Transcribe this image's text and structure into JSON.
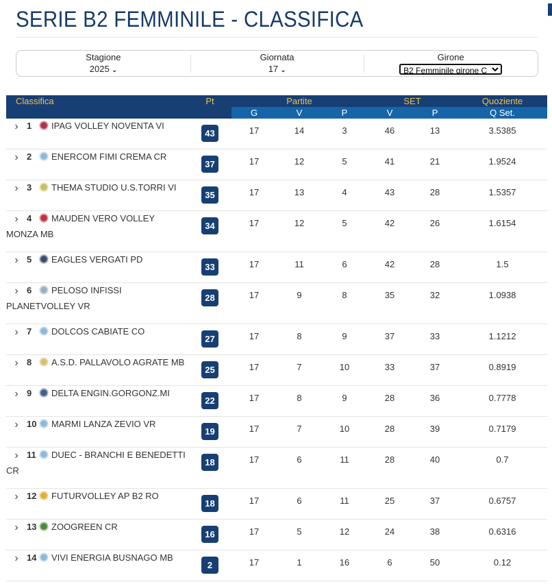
{
  "title": "SERIE B2 FEMMINILE - CLASSIFICA",
  "filters": {
    "stagione": {
      "label": "Stagione",
      "value": "2025"
    },
    "giornata": {
      "label": "Giornata",
      "value": "17"
    },
    "girone": {
      "label": "Girone",
      "value": "B2 Femminile girone C"
    }
  },
  "table": {
    "headers": {
      "classifica": "Classifica",
      "pt": "Pt",
      "partite": "Partite",
      "set": "SET",
      "quoziente": "Quoziente"
    },
    "subheaders": {
      "g": "G",
      "v": "V",
      "p": "P",
      "sv": "V",
      "sp": "P",
      "q": "Q Set."
    },
    "rows": [
      {
        "pos": "1",
        "team": "IPAG VOLLEY NOVENTA VI",
        "pt": "43",
        "g": "17",
        "v": "14",
        "p": "3",
        "sv": "46",
        "sp": "13",
        "q": "3.5385"
      },
      {
        "pos": "2",
        "team": "ENERCOM FIMI CREMA CR",
        "pt": "37",
        "g": "17",
        "v": "12",
        "p": "5",
        "sv": "41",
        "sp": "21",
        "q": "1.9524"
      },
      {
        "pos": "3",
        "team": "THEMA STUDIO U.S.TORRI VI",
        "pt": "35",
        "g": "17",
        "v": "13",
        "p": "4",
        "sv": "43",
        "sp": "28",
        "q": "1.5357"
      },
      {
        "pos": "4",
        "team": "MAUDEN VERO VOLLEY MONZA MB",
        "pt": "34",
        "g": "17",
        "v": "12",
        "p": "5",
        "sv": "42",
        "sp": "26",
        "q": "1.6154"
      },
      {
        "pos": "5",
        "team": "EAGLES VERGATI PD",
        "pt": "33",
        "g": "17",
        "v": "11",
        "p": "6",
        "sv": "42",
        "sp": "28",
        "q": "1.5"
      },
      {
        "pos": "6",
        "team": "PELOSO INFISSI PLANETVOLLEY VR",
        "pt": "28",
        "g": "17",
        "v": "9",
        "p": "8",
        "sv": "35",
        "sp": "32",
        "q": "1.0938"
      },
      {
        "pos": "7",
        "team": "DOLCOS CABIATE CO",
        "pt": "27",
        "g": "17",
        "v": "8",
        "p": "9",
        "sv": "37",
        "sp": "33",
        "q": "1.1212"
      },
      {
        "pos": "8",
        "team": "A.S.D. PALLAVOLO AGRATE MB",
        "pt": "25",
        "g": "17",
        "v": "7",
        "p": "10",
        "sv": "33",
        "sp": "37",
        "q": "0.8919"
      },
      {
        "pos": "9",
        "team": "DELTA ENGIN.GORGONZ.MI",
        "pt": "22",
        "g": "17",
        "v": "8",
        "p": "9",
        "sv": "28",
        "sp": "36",
        "q": "0.7778"
      },
      {
        "pos": "10",
        "team": "MARMI LANZA ZEVIO VR",
        "pt": "19",
        "g": "17",
        "v": "7",
        "p": "10",
        "sv": "28",
        "sp": "39",
        "q": "0.7179"
      },
      {
        "pos": "11",
        "team": "DUEC - BRANCHI E BENEDETTI CR",
        "pt": "18",
        "g": "17",
        "v": "6",
        "p": "11",
        "sv": "28",
        "sp": "40",
        "q": "0.7"
      },
      {
        "pos": "12",
        "team": "FUTURVOLLEY AP B2 RO",
        "pt": "18",
        "g": "17",
        "v": "6",
        "p": "11",
        "sv": "25",
        "sp": "37",
        "q": "0.6757"
      },
      {
        "pos": "13",
        "team": "ZOOGREEN CR",
        "pt": "16",
        "g": "17",
        "v": "5",
        "p": "12",
        "sv": "24",
        "sp": "38",
        "q": "0.6316"
      },
      {
        "pos": "14",
        "team": "VIVI ENERGIA BUSNAGO MB",
        "pt": "2",
        "g": "17",
        "v": "1",
        "p": "16",
        "sv": "6",
        "sp": "50",
        "q": "0.12"
      }
    ]
  },
  "colors": {
    "header_dark": "#173f74",
    "header_sub": "#1565a8",
    "header_text": "#f2c14e",
    "badge": "#173f74"
  }
}
